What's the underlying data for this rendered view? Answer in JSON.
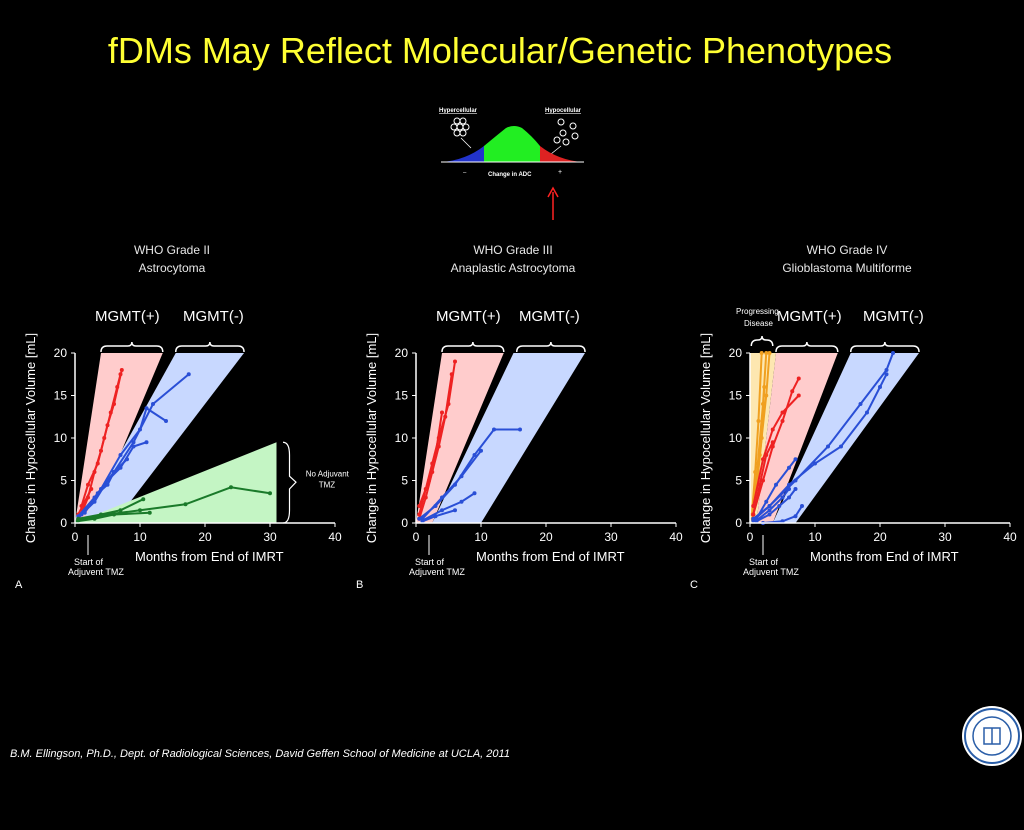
{
  "title": "fDMs May Reflect Molecular/Genetic Phenotypes",
  "footer": "B.M. Ellingson, Ph.D., Dept. of Radiological Sciences, David Geffen School of Medicine at UCLA, 2011",
  "inset": {
    "left_label": "Hypercellular",
    "right_label": "Hypocellular",
    "xlabel": "Change in ADC",
    "minus": "–",
    "plus": "+"
  },
  "colors": {
    "mgmt_pos": "#ee2222",
    "mgmt_neg": "#2a4fd6",
    "no_tmz": "#1a7a2a",
    "progressing": "#f0a020",
    "title": "#ffff33"
  },
  "chart_data": [
    {
      "type": "line",
      "panel": "A",
      "title": "WHO Grade II",
      "subtitle": "Astrocytoma",
      "xlabel": "Months from End of IMRT",
      "ylabel": "Change in Hypocellular Volume [mL]",
      "xlim": [
        0,
        40
      ],
      "ylim": [
        0,
        20
      ],
      "xticks": [
        0,
        10,
        20,
        30,
        40
      ],
      "yticks": [
        0,
        5,
        10,
        15,
        20
      ],
      "groups": [
        {
          "label": "MGMT(+)"
        },
        {
          "label": "MGMT(-)"
        }
      ],
      "annotations": {
        "start_label_1": "Start of",
        "start_label_2": "Adjuvent TMZ",
        "bracket_label_1": "No Adjuvant",
        "bracket_label_2": "TMZ"
      },
      "series": [
        {
          "group": "MGMT(+)",
          "points": [
            [
              1.2,
              1.5
            ],
            [
              2,
              3
            ],
            [
              3,
              6
            ],
            [
              4,
              8.5
            ],
            [
              5,
              11.5
            ],
            [
              6,
              14
            ],
            [
              7.2,
              18
            ]
          ]
        },
        {
          "group": "MGMT(+)",
          "points": [
            [
              1,
              2
            ],
            [
              2,
              4.5
            ],
            [
              3.5,
              7
            ],
            [
              4.5,
              10
            ],
            [
              5.5,
              13
            ],
            [
              6.5,
              16
            ],
            [
              7,
              17.5
            ]
          ]
        },
        {
          "group": "MGMT(+)",
          "points": [
            [
              0.5,
              1
            ],
            [
              1.5,
              2.5
            ],
            [
              2.5,
              4
            ]
          ]
        },
        {
          "group": "MGMT(-)",
          "points": [
            [
              0.5,
              0.8
            ],
            [
              3,
              3
            ],
            [
              6,
              6
            ],
            [
              9,
              9.5
            ],
            [
              12,
              14
            ],
            [
              17.5,
              17.5
            ]
          ]
        },
        {
          "group": "MGMT(-)",
          "points": [
            [
              0.5,
              0.5
            ],
            [
              4,
              4
            ],
            [
              7,
              8
            ],
            [
              10,
              11
            ],
            [
              11,
              13.5
            ],
            [
              14,
              12
            ]
          ]
        },
        {
          "group": "MGMT(-)",
          "points": [
            [
              1,
              1
            ],
            [
              3,
              2.5
            ],
            [
              5,
              5
            ],
            [
              7,
              6.5
            ],
            [
              9,
              9
            ],
            [
              11,
              9.5
            ]
          ]
        },
        {
          "group": "MGMT(-)",
          "points": [
            [
              1.5,
              1.2
            ],
            [
              3.5,
              3.5
            ],
            [
              5,
              4.5
            ],
            [
              6,
              6
            ],
            [
              8,
              7.5
            ]
          ]
        },
        {
          "group": "No Adjuvant TMZ",
          "points": [
            [
              0.5,
              0.3
            ],
            [
              5,
              1
            ],
            [
              10,
              1.5
            ],
            [
              17,
              2.2
            ],
            [
              24,
              4.2
            ],
            [
              30,
              3.5
            ]
          ]
        },
        {
          "group": "No Adjuvant TMZ",
          "points": [
            [
              0.5,
              0.5
            ],
            [
              4,
              1
            ],
            [
              7,
              1.5
            ],
            [
              10.5,
              2.8
            ]
          ]
        },
        {
          "group": "No Adjuvant TMZ",
          "points": [
            [
              0.3,
              0.2
            ],
            [
              3,
              0.5
            ],
            [
              6,
              1
            ],
            [
              11.5,
              1.2
            ]
          ]
        }
      ]
    },
    {
      "type": "line",
      "panel": "B",
      "title": "WHO Grade III",
      "subtitle": "Anaplastic Astrocytoma",
      "xlabel": "Months from End of IMRT",
      "ylabel": "Change in Hypocellular Volume [mL]",
      "xlim": [
        0,
        40
      ],
      "ylim": [
        0,
        20
      ],
      "xticks": [
        0,
        10,
        20,
        30,
        40
      ],
      "yticks": [
        0,
        5,
        10,
        15,
        20
      ],
      "groups": [
        {
          "label": "MGMT(+)"
        },
        {
          "label": "MGMT(-)"
        }
      ],
      "annotations": {
        "start_label_1": "Start of",
        "start_label_2": "Adjuvent TMZ"
      },
      "series": [
        {
          "group": "MGMT(+)",
          "points": [
            [
              0.5,
              0.5
            ],
            [
              1.5,
              3
            ],
            [
              2.5,
              6
            ],
            [
              3.5,
              9
            ],
            [
              4.5,
              12.5
            ],
            [
              5.5,
              17.5
            ]
          ]
        },
        {
          "group": "MGMT(+)",
          "points": [
            [
              0.5,
              1
            ],
            [
              1.5,
              4
            ],
            [
              2.5,
              7
            ],
            [
              3.5,
              10
            ],
            [
              5,
              14
            ],
            [
              6,
              19
            ]
          ]
        },
        {
          "group": "MGMT(+)",
          "points": [
            [
              0.5,
              2
            ],
            [
              2,
              5
            ],
            [
              3,
              8
            ],
            [
              4,
              13
            ]
          ]
        },
        {
          "group": "MGMT(-)",
          "points": [
            [
              0.5,
              0.5
            ],
            [
              3,
              2
            ],
            [
              6,
              4.5
            ],
            [
              9,
              8
            ],
            [
              12,
              11
            ],
            [
              16,
              11
            ]
          ]
        },
        {
          "group": "MGMT(-)",
          "points": [
            [
              1,
              0.5
            ],
            [
              4,
              3
            ],
            [
              7,
              5.5
            ],
            [
              10,
              8.5
            ]
          ]
        },
        {
          "group": "MGMT(-)",
          "points": [
            [
              1,
              0.3
            ],
            [
              4,
              1.5
            ],
            [
              7,
              2.5
            ],
            [
              9,
              3.5
            ]
          ]
        },
        {
          "group": "MGMT(-)",
          "points": [
            [
              1,
              0.2
            ],
            [
              3,
              0.8
            ],
            [
              6,
              1.5
            ]
          ]
        }
      ]
    },
    {
      "type": "line",
      "panel": "C",
      "title": "WHO Grade IV",
      "subtitle": "Glioblastoma Multiforme",
      "xlabel": "Months from End of IMRT",
      "ylabel": "Change in Hypocellular Volume [mL]",
      "xlim": [
        0,
        40
      ],
      "ylim": [
        0,
        20
      ],
      "xticks": [
        0,
        10,
        20,
        30,
        40
      ],
      "yticks": [
        0,
        5,
        10,
        15,
        20
      ],
      "groups": [
        {
          "label": "Progressing Disease"
        },
        {
          "label": "MGMT(+)"
        },
        {
          "label": "MGMT(-)"
        }
      ],
      "annotations": {
        "start_label_1": "Start of",
        "start_label_2": "Adjuvent TMZ",
        "progressing_1": "Progressing",
        "progressing_2": "Disease"
      },
      "series": [
        {
          "group": "Progressing Disease",
          "points": [
            [
              0.3,
              1
            ],
            [
              0.8,
              6
            ],
            [
              1.3,
              12
            ],
            [
              1.8,
              20
            ]
          ]
        },
        {
          "group": "Progressing Disease",
          "points": [
            [
              0.5,
              1
            ],
            [
              1.2,
              7
            ],
            [
              2,
              14
            ],
            [
              2.5,
              20
            ]
          ]
        },
        {
          "group": "Progressing Disease",
          "points": [
            [
              0.6,
              2
            ],
            [
              1.5,
              8
            ],
            [
              2.5,
              15
            ],
            [
              3,
              20
            ]
          ]
        },
        {
          "group": "Progressing Disease",
          "points": [
            [
              0.4,
              0.5
            ],
            [
              1,
              4
            ],
            [
              1.8,
              10
            ],
            [
              2.2,
              16
            ]
          ]
        },
        {
          "group": "MGMT(+)",
          "points": [
            [
              0.5,
              1
            ],
            [
              2,
              5
            ],
            [
              3.5,
              9
            ],
            [
              5,
              12
            ],
            [
              6.5,
              15.5
            ],
            [
              7.5,
              17
            ]
          ]
        },
        {
          "group": "MGMT(+)",
          "points": [
            [
              0.5,
              2
            ],
            [
              2,
              7.5
            ],
            [
              3.5,
              11
            ],
            [
              5,
              13
            ],
            [
              7.5,
              15
            ]
          ]
        },
        {
          "group": "MGMT(+)",
          "points": [
            [
              0.5,
              1
            ],
            [
              1.5,
              4.5
            ],
            [
              2.5,
              8
            ],
            [
              3.5,
              9.5
            ]
          ]
        },
        {
          "group": "MGMT(-)",
          "points": [
            [
              0.5,
              0.5
            ],
            [
              3,
              2
            ],
            [
              7,
              5
            ],
            [
              12,
              9
            ],
            [
              17,
              14
            ],
            [
              21,
              18
            ],
            [
              22,
              20
            ]
          ]
        },
        {
          "group": "MGMT(-)",
          "points": [
            [
              0.5,
              0.3
            ],
            [
              3,
              2
            ],
            [
              6,
              4.5
            ],
            [
              10,
              7
            ],
            [
              14,
              9
            ],
            [
              18,
              13
            ],
            [
              20,
              16
            ],
            [
              21,
              17.5
            ]
          ]
        },
        {
          "group": "MGMT(-)",
          "points": [
            [
              1,
              0.5
            ],
            [
              2.5,
              2.5
            ],
            [
              4,
              4.5
            ],
            [
              6,
              6.5
            ],
            [
              7,
              7.5
            ]
          ]
        },
        {
          "group": "MGMT(-)",
          "points": [
            [
              1,
              0.2
            ],
            [
              3,
              1
            ],
            [
              4.5,
              2
            ],
            [
              6,
              3
            ],
            [
              7,
              4
            ]
          ]
        },
        {
          "group": "MGMT(-)",
          "points": [
            [
              1,
              0.3
            ],
            [
              3,
              1.5
            ],
            [
              5,
              3
            ],
            [
              6,
              4
            ]
          ]
        },
        {
          "group": "MGMT(-)",
          "points": [
            [
              2,
              0
            ],
            [
              5,
              0.2
            ],
            [
              7,
              0.8
            ],
            [
              8,
              2
            ]
          ]
        }
      ]
    }
  ]
}
